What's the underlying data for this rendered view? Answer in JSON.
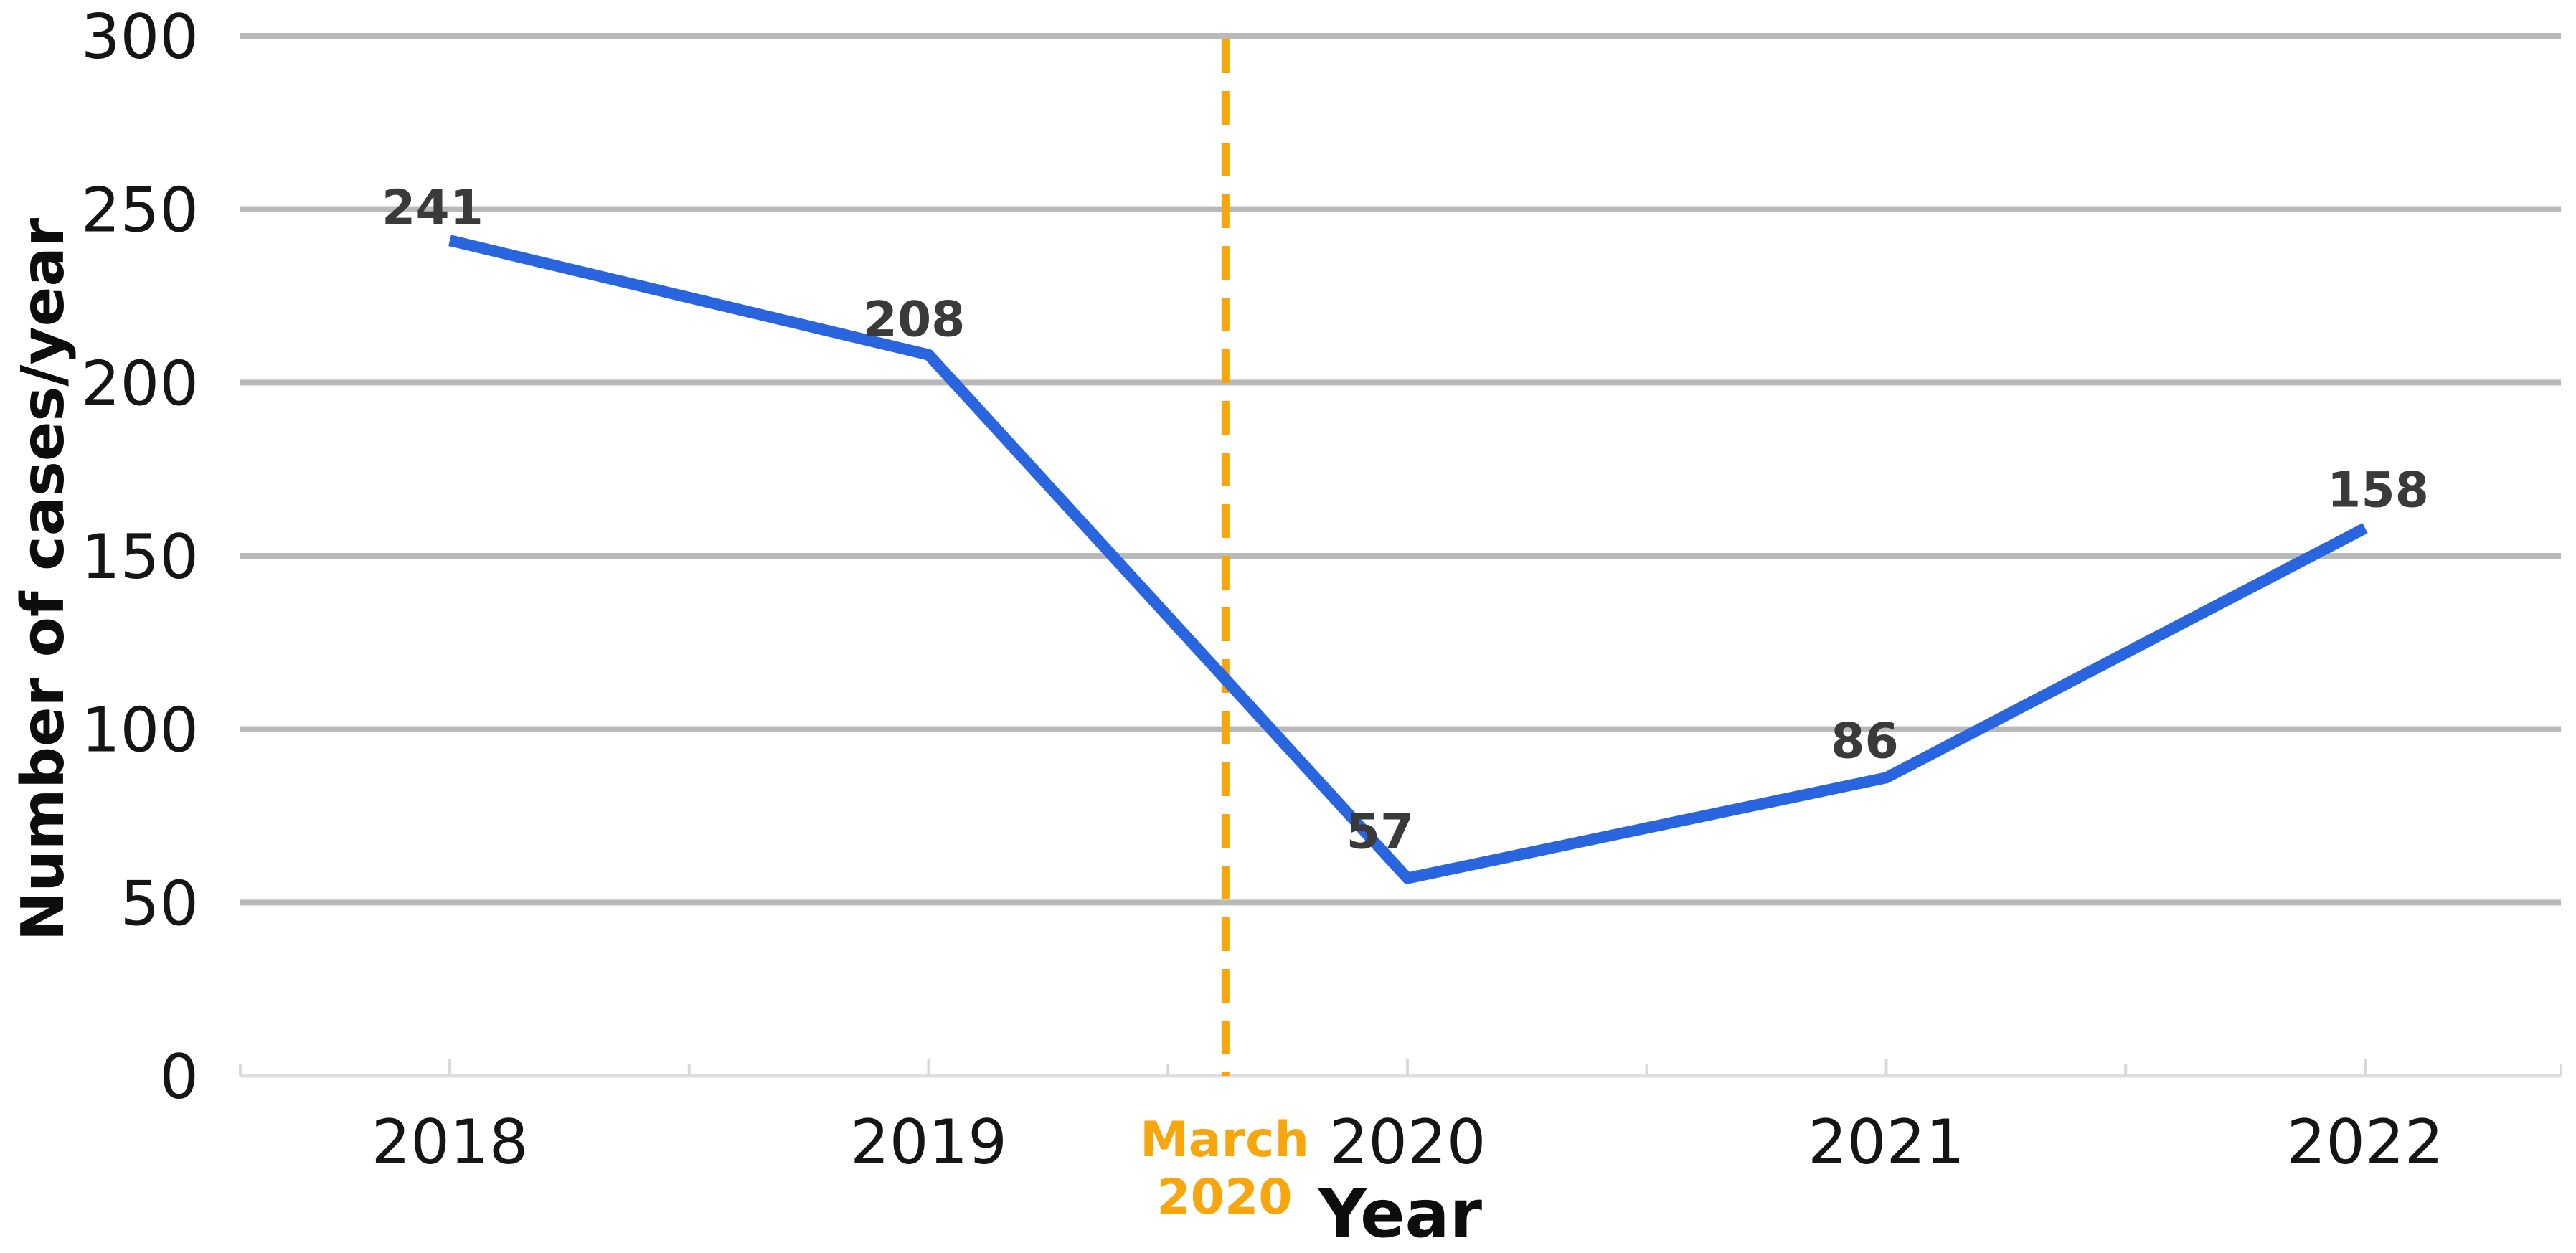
{
  "chart_data": {
    "type": "line",
    "title": "",
    "xlabel": "Year",
    "ylabel": "Number of cases/year",
    "x": [
      2018,
      2019,
      2020,
      2021,
      2022
    ],
    "xtick_labels": [
      "2018",
      "2019",
      "2020",
      "2021",
      "2022"
    ],
    "yticks": [
      0,
      50,
      100,
      150,
      200,
      250,
      300
    ],
    "ylim": [
      0,
      300
    ],
    "grid": "horizontal-only",
    "legend": "none",
    "series": [
      {
        "name": "Number of cases/year",
        "values": [
          241,
          208,
          57,
          86,
          158
        ],
        "point_labels": [
          "241",
          "208",
          "57",
          "86",
          "158"
        ],
        "color": "#2a65e0"
      }
    ],
    "annotation": {
      "lines": [
        "March",
        "2020"
      ],
      "x_year": 2019.62,
      "style": "dashed-vertical-line",
      "color": "#f8a60d"
    },
    "colors": {
      "line": "#2a65e0",
      "grid": "#b9b9b9",
      "axis_line": "#dfdfdf",
      "tick_mark": "#d9d9d9",
      "data_label": "#3a3a3a",
      "tick_label": "#151515",
      "axis_title": "#0d0d0d",
      "annotation": "#f8a60d",
      "background": "#ffffff"
    }
  }
}
